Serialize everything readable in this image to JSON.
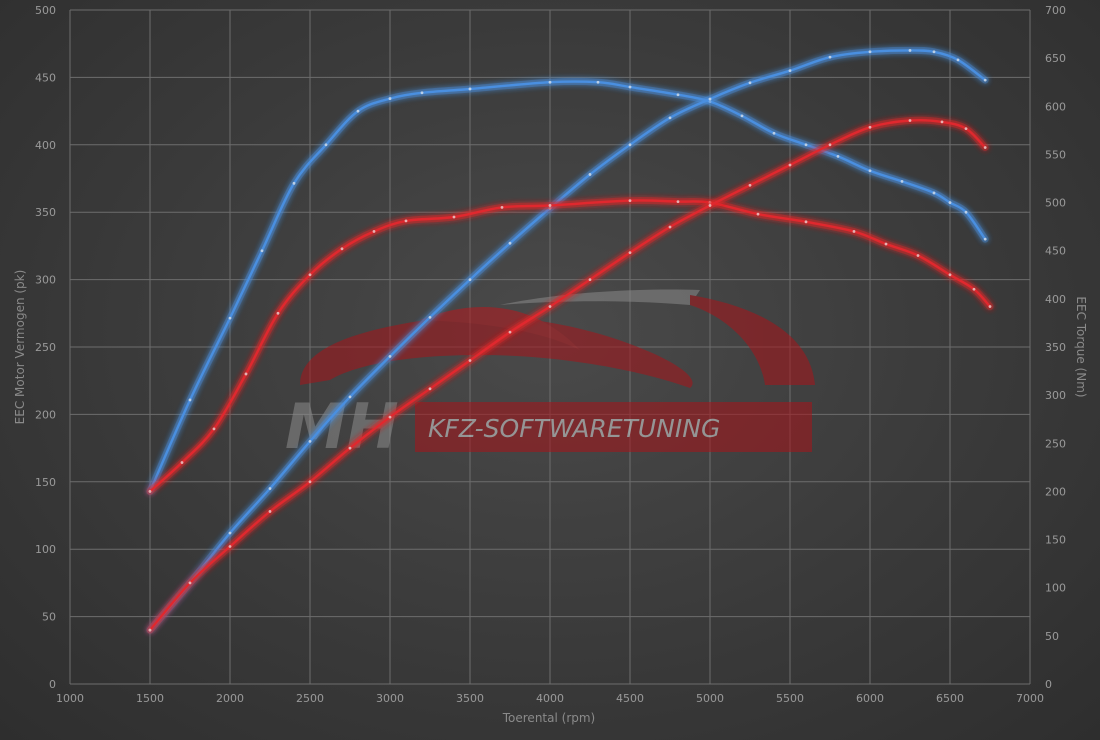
{
  "chart_data": {
    "type": "line",
    "xlabel": "Toerental (rpm)",
    "ylabel_left": "EEC Motor Vermogen (pk)",
    "ylabel_right": "EEC Torque (Nm)",
    "xlim": [
      1000,
      7000
    ],
    "ylim_left": [
      0,
      500
    ],
    "ylim_right": [
      0,
      700
    ],
    "x_ticks": [
      1000,
      1500,
      2000,
      2500,
      3000,
      3500,
      4000,
      4500,
      5000,
      5500,
      6000,
      6500,
      7000
    ],
    "y_left_ticks": [
      0,
      50,
      100,
      150,
      200,
      250,
      300,
      350,
      400,
      450,
      500
    ],
    "y_right_ticks": [
      0,
      50,
      100,
      150,
      200,
      250,
      300,
      350,
      400,
      450,
      500,
      550,
      600,
      650,
      700
    ],
    "grid": true,
    "series": [
      {
        "axis": "right",
        "color": "#4a8fe0",
        "points": [
          [
            1500,
            200
          ],
          [
            1750,
            295
          ],
          [
            2000,
            380
          ],
          [
            2200,
            450
          ],
          [
            2400,
            520
          ],
          [
            2600,
            560
          ],
          [
            2800,
            595
          ],
          [
            3000,
            608
          ],
          [
            3200,
            614
          ],
          [
            3500,
            618
          ],
          [
            4000,
            625
          ],
          [
            4300,
            625
          ],
          [
            4500,
            620
          ],
          [
            4800,
            612
          ],
          [
            5000,
            605
          ],
          [
            5200,
            590
          ],
          [
            5400,
            572
          ],
          [
            5600,
            560
          ],
          [
            5800,
            548
          ],
          [
            6000,
            533
          ],
          [
            6200,
            522
          ],
          [
            6400,
            510
          ],
          [
            6500,
            500
          ],
          [
            6600,
            490
          ],
          [
            6720,
            462
          ]
        ]
      },
      {
        "axis": "left",
        "color": "#4a8fe0",
        "points": [
          [
            1500,
            40
          ],
          [
            1750,
            75
          ],
          [
            2000,
            112
          ],
          [
            2250,
            145
          ],
          [
            2500,
            180
          ],
          [
            2750,
            213
          ],
          [
            3000,
            243
          ],
          [
            3250,
            272
          ],
          [
            3500,
            300
          ],
          [
            3750,
            327
          ],
          [
            4000,
            353
          ],
          [
            4250,
            378
          ],
          [
            4500,
            400
          ],
          [
            4750,
            420
          ],
          [
            5000,
            434
          ],
          [
            5250,
            446
          ],
          [
            5500,
            455
          ],
          [
            5750,
            465
          ],
          [
            6000,
            469
          ],
          [
            6250,
            470
          ],
          [
            6400,
            469
          ],
          [
            6550,
            463
          ],
          [
            6720,
            448
          ]
        ]
      },
      {
        "axis": "right",
        "color": "#e0282e",
        "points": [
          [
            1500,
            200
          ],
          [
            1700,
            230
          ],
          [
            1900,
            265
          ],
          [
            2100,
            322
          ],
          [
            2300,
            385
          ],
          [
            2500,
            425
          ],
          [
            2700,
            452
          ],
          [
            2900,
            470
          ],
          [
            3100,
            481
          ],
          [
            3400,
            485
          ],
          [
            3700,
            495
          ],
          [
            4000,
            497
          ],
          [
            4500,
            502
          ],
          [
            4800,
            501
          ],
          [
            5000,
            500
          ],
          [
            5300,
            488
          ],
          [
            5600,
            480
          ],
          [
            5900,
            470
          ],
          [
            6100,
            457
          ],
          [
            6300,
            445
          ],
          [
            6500,
            425
          ],
          [
            6650,
            410
          ],
          [
            6750,
            392
          ]
        ]
      },
      {
        "axis": "left",
        "color": "#e0282e",
        "points": [
          [
            1500,
            40
          ],
          [
            1750,
            75
          ],
          [
            2000,
            102
          ],
          [
            2250,
            128
          ],
          [
            2500,
            150
          ],
          [
            2750,
            175
          ],
          [
            3000,
            198
          ],
          [
            3250,
            219
          ],
          [
            3500,
            240
          ],
          [
            3750,
            261
          ],
          [
            4000,
            280
          ],
          [
            4250,
            300
          ],
          [
            4500,
            320
          ],
          [
            4750,
            339
          ],
          [
            5000,
            355
          ],
          [
            5250,
            370
          ],
          [
            5500,
            385
          ],
          [
            5750,
            400
          ],
          [
            6000,
            413
          ],
          [
            6250,
            418
          ],
          [
            6450,
            417
          ],
          [
            6600,
            412
          ],
          [
            6720,
            398
          ]
        ]
      }
    ]
  },
  "watermark": {
    "brand": "MH",
    "tagline": "KFZ-SOFTWARETUNING"
  }
}
